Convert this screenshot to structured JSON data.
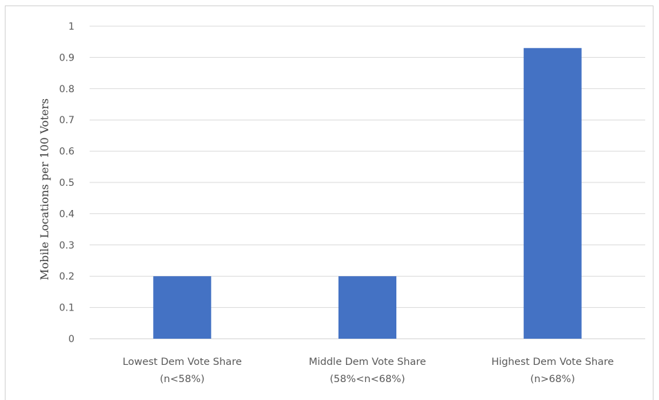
{
  "chart_data": {
    "type": "bar",
    "title": "",
    "xlabel": "",
    "ylabel": "Mobile Locations per 100 Voters",
    "ylim": [
      0,
      1
    ],
    "yticks": [
      0,
      0.1,
      0.2,
      0.3,
      0.4,
      0.5,
      0.6,
      0.7,
      0.8,
      0.9,
      1
    ],
    "ytick_labels": [
      "0",
      "0.1",
      "0.2",
      "0.3",
      "0.4",
      "0.5",
      "0.6",
      "0.7",
      "0.8",
      "0.9",
      "1"
    ],
    "categories": [
      [
        "Lowest Dem Vote Share",
        "(n<58%)"
      ],
      [
        "Middle Dem Vote Share",
        "(58%<n<68%)"
      ],
      [
        "Highest Dem Vote Share",
        "(n>68%)"
      ]
    ],
    "values": [
      0.2,
      0.2,
      0.93
    ],
    "bar_color": "#4472c4",
    "grid": true,
    "legend": "none"
  }
}
